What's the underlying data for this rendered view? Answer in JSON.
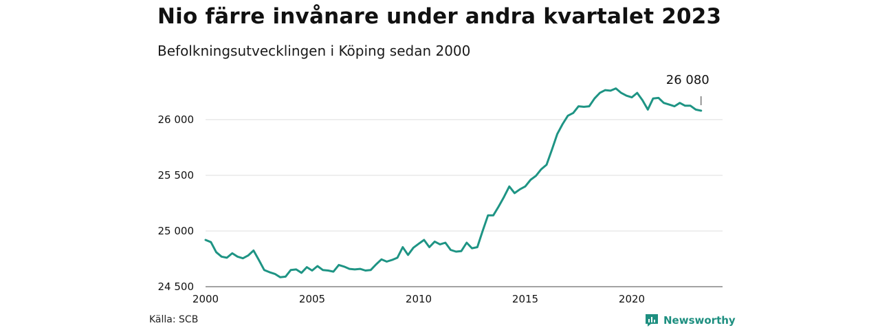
{
  "header": {
    "title": "Nio färre invånare under andra kvartalet 2023",
    "subtitle": "Befolkningsutvecklingen i Köping sedan 2000"
  },
  "footer": {
    "source": "Källa: SCB",
    "brand": "Newsworthy",
    "brand_icon": "chart-bubble-icon",
    "brand_color": "#1e8f80"
  },
  "chart_data": {
    "type": "line",
    "title": "Nio färre invånare under andra kvartalet 2023",
    "subtitle": "Befolkningsutvecklingen i Köping sedan 2000",
    "xlabel": "",
    "ylabel": "",
    "xlim": [
      2000,
      2024.3
    ],
    "ylim": [
      24500,
      26350
    ],
    "x_ticks": [
      2000,
      2005,
      2010,
      2015,
      2020
    ],
    "x_tick_labels": [
      "2000",
      "2005",
      "2010",
      "2015",
      "2020"
    ],
    "y_ticks": [
      24500,
      25000,
      25500,
      26000
    ],
    "y_tick_labels": [
      "24 500",
      "25 000",
      "25 500",
      "26 000"
    ],
    "grid": "horizontal",
    "line_color": "#1e9484",
    "annotation": {
      "label": "26 080",
      "value": 26080
    },
    "series": [
      {
        "x": [
          2000.0,
          2000.25,
          2000.5,
          2000.75,
          2001.0,
          2001.25,
          2001.5,
          2001.75,
          2002.0,
          2002.25,
          2002.5,
          2002.75,
          2003.0,
          2003.25,
          2003.5,
          2003.75,
          2004.0,
          2004.25,
          2004.5,
          2004.75,
          2005.0,
          2005.25,
          2005.5,
          2005.75,
          2006.0,
          2006.25,
          2006.5,
          2006.75,
          2007.0,
          2007.25,
          2007.5,
          2007.75,
          2008.0,
          2008.25,
          2008.5,
          2008.75,
          2009.0,
          2009.25,
          2009.5,
          2009.75,
          2010.0,
          2010.25,
          2010.5,
          2010.75,
          2011.0,
          2011.25,
          2011.5,
          2011.75,
          2012.0,
          2012.25,
          2012.5,
          2012.75,
          2013.0,
          2013.25,
          2013.5,
          2013.75,
          2014.0,
          2014.25,
          2014.5,
          2014.75,
          2015.0,
          2015.25,
          2015.5,
          2015.75,
          2016.0,
          2016.25,
          2016.5,
          2016.75,
          2017.0,
          2017.25,
          2017.5,
          2017.75,
          2018.0,
          2018.25,
          2018.5,
          2018.75,
          2019.0,
          2019.25,
          2019.5,
          2019.75,
          2020.0,
          2020.25,
          2020.5,
          2020.75,
          2021.0,
          2021.25,
          2021.5,
          2021.75,
          2022.0,
          2022.25,
          2022.5,
          2022.75,
          2023.0,
          2023.25
        ],
        "values": [
          24920,
          24900,
          24810,
          24770,
          24760,
          24800,
          24770,
          24755,
          24780,
          24825,
          24740,
          24650,
          24630,
          24615,
          24585,
          24590,
          24650,
          24655,
          24625,
          24675,
          24645,
          24685,
          24650,
          24645,
          24635,
          24695,
          24680,
          24660,
          24655,
          24660,
          24645,
          24650,
          24700,
          24745,
          24725,
          24740,
          24760,
          24855,
          24785,
          24850,
          24885,
          24920,
          24855,
          24905,
          24880,
          24895,
          24830,
          24815,
          24820,
          24895,
          24845,
          24855,
          25000,
          25140,
          25140,
          25220,
          25305,
          25400,
          25340,
          25375,
          25400,
          25460,
          25495,
          25555,
          25595,
          25730,
          25870,
          25960,
          26035,
          26060,
          26120,
          26115,
          26120,
          26190,
          26240,
          26265,
          26260,
          26280,
          26240,
          26215,
          26200,
          26240,
          26175,
          26090,
          26190,
          26195,
          26150,
          26135,
          26120,
          26150,
          26125,
          26125,
          26090,
          26080
        ]
      }
    ]
  }
}
